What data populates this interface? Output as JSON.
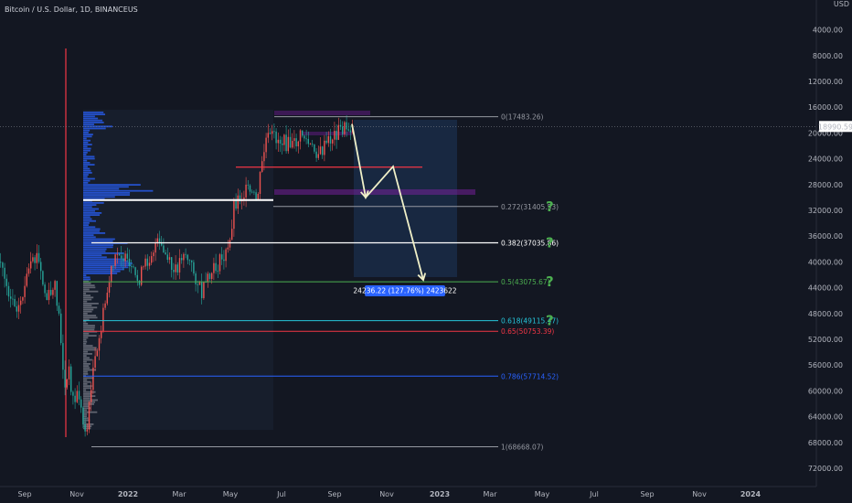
{
  "header": {
    "title": "Bitcoin / U.S. Dollar, 1D, BINANCEUS"
  },
  "chart_data": {
    "type": "candlestick",
    "currency": "USD",
    "y_axis": {
      "inverted": true,
      "range": [
        0,
        74000
      ],
      "ticks": [
        "4000.00",
        "8000.00",
        "12000.00",
        "16000.00",
        "20000.00",
        "24000.00",
        "28000.00",
        "32000.00",
        "36000.00",
        "40000.00",
        "44000.00",
        "48000.00",
        "52000.00",
        "56000.00",
        "60000.00",
        "64000.00",
        "68000.00",
        "72000.00"
      ]
    },
    "x_axis": {
      "labels": [
        "Sep",
        "Nov",
        "2022",
        "Mar",
        "May",
        "Jul",
        "Sep",
        "Nov",
        "2023",
        "Mar",
        "May",
        "Jul",
        "Sep",
        "Nov",
        "2024"
      ],
      "bold_labels": [
        "2022",
        "2023",
        "2024"
      ]
    },
    "current_price": {
      "value": 18990.59,
      "label": "18990.59",
      "color": "#ffffff"
    },
    "fib_levels": [
      {
        "ratio": "0",
        "price": 17483.26,
        "label": "0(17483.26)",
        "color": "#9598a1",
        "question": false
      },
      {
        "ratio": "0.272",
        "price": 31405.53,
        "label": "0.272(31405.53)",
        "color": "#9598a1",
        "question": true
      },
      {
        "ratio": "0.382",
        "price": 37035.86,
        "label": "0.382(37035.86)",
        "color": "#ffffff",
        "question": true
      },
      {
        "ratio": "0.5",
        "price": 43075.67,
        "label": "0.5(43075.67)",
        "color": "#4caf50",
        "question": true
      },
      {
        "ratio": "0.618",
        "price": 49115.47,
        "label": "0.618(49115.47)",
        "color": "#26c6da",
        "question": true
      },
      {
        "ratio": "0.65",
        "price": 50753.39,
        "label": "0.65(50753.39)",
        "color": "#f23645",
        "question": false
      },
      {
        "ratio": "0.786",
        "price": 57714.52,
        "label": "0.786(57714.52)",
        "color": "#2962ff",
        "question": false
      },
      {
        "ratio": "1",
        "price": 68668.07,
        "label": "1(68668.07)",
        "color": "#9598a1",
        "question": false
      }
    ],
    "measure_label": "24236.22 (127.76%) 2423622",
    "question_mark": "?",
    "annotations": {
      "support_line_white_price": 30200,
      "resistance_line_red_price": 25300,
      "projection_path_prices": [
        18600,
        30000,
        25200,
        42800
      ]
    },
    "candles_note": "Daily BTC/USD candles Aug 2021 – Oct 2022 with volume profile overlay"
  }
}
